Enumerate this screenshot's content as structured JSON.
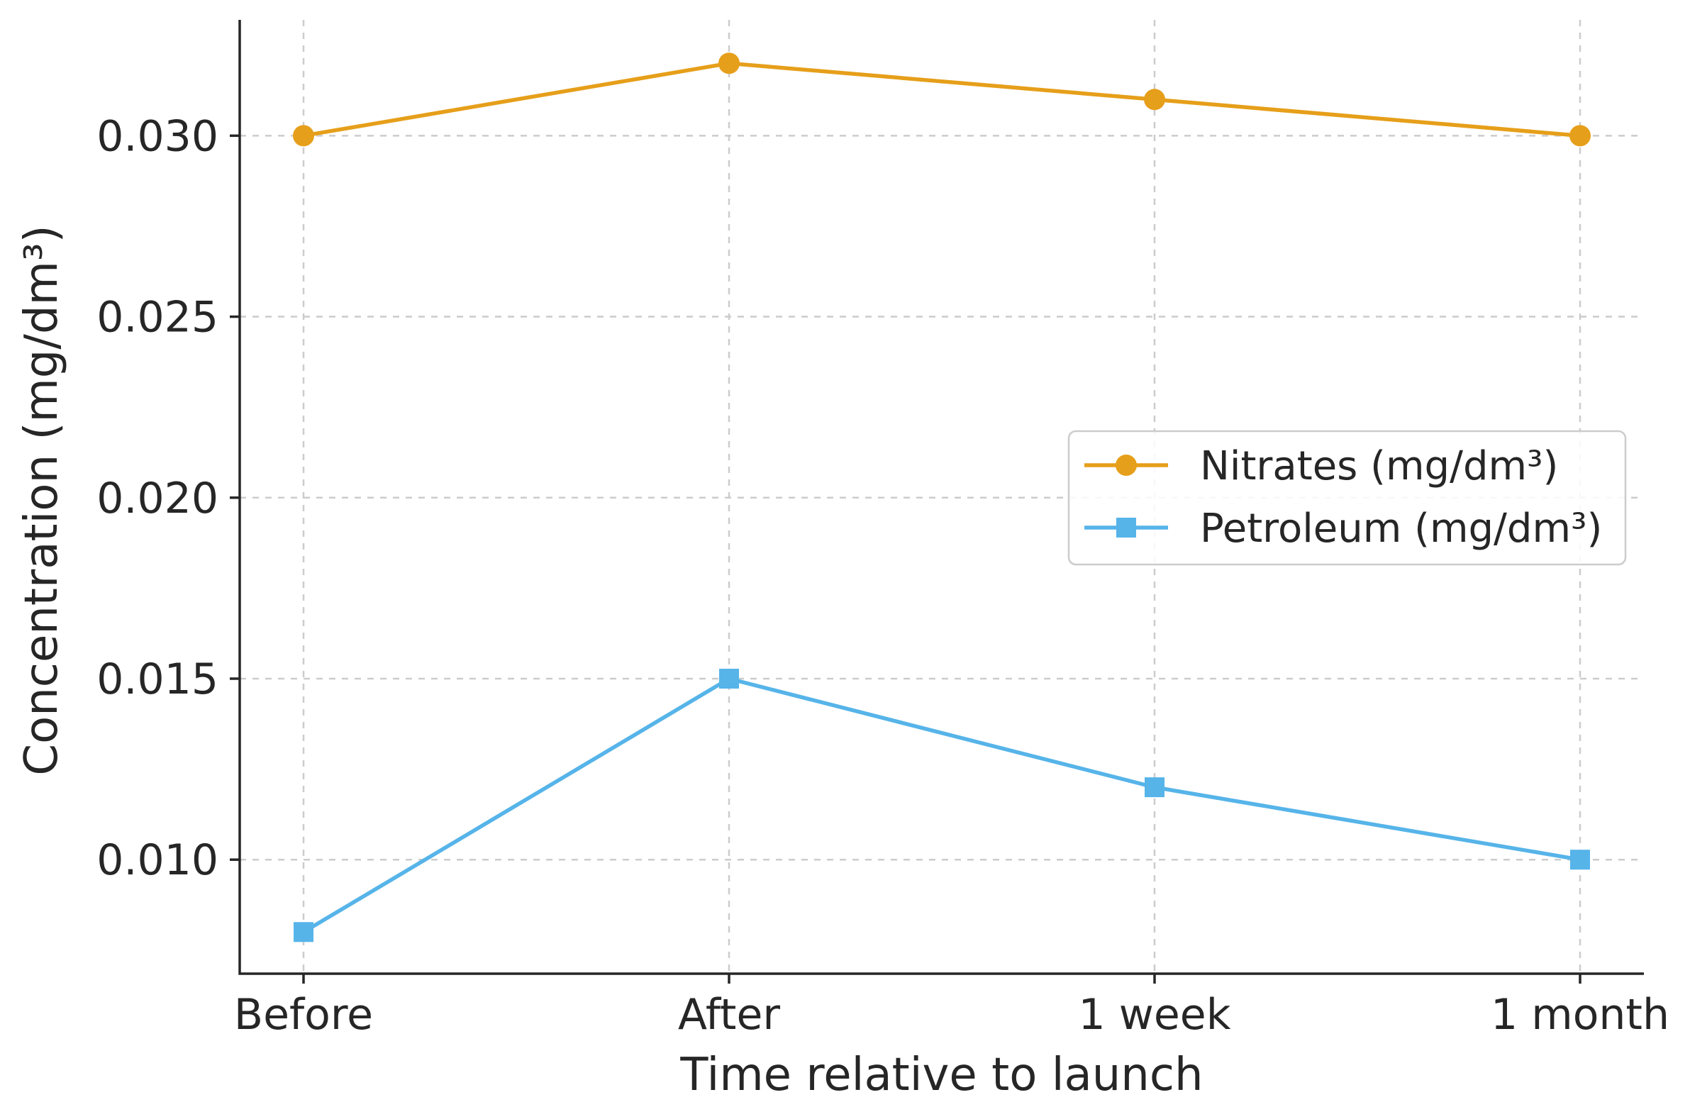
{
  "chart_data": {
    "type": "line",
    "title": "",
    "xlabel": "Time relative to launch",
    "ylabel": "Concentration (mg/dm³)",
    "categories": [
      "Before",
      "After",
      "1 week",
      "1 month"
    ],
    "yticks": [
      "0.010",
      "0.015",
      "0.020",
      "0.025",
      "0.030"
    ],
    "ylim": [
      0.00685,
      0.0332
    ],
    "grid": true,
    "legend_position": "center-right",
    "series": [
      {
        "name": "Nitrates (mg/dm³)",
        "values": [
          0.03,
          0.032,
          0.031,
          0.03
        ],
        "color": "#e69f1a",
        "marker": "circle"
      },
      {
        "name": "Petroleum (mg/dm³)",
        "values": [
          0.008,
          0.015,
          0.012,
          0.01
        ],
        "color": "#56b4e9",
        "marker": "square"
      }
    ]
  }
}
